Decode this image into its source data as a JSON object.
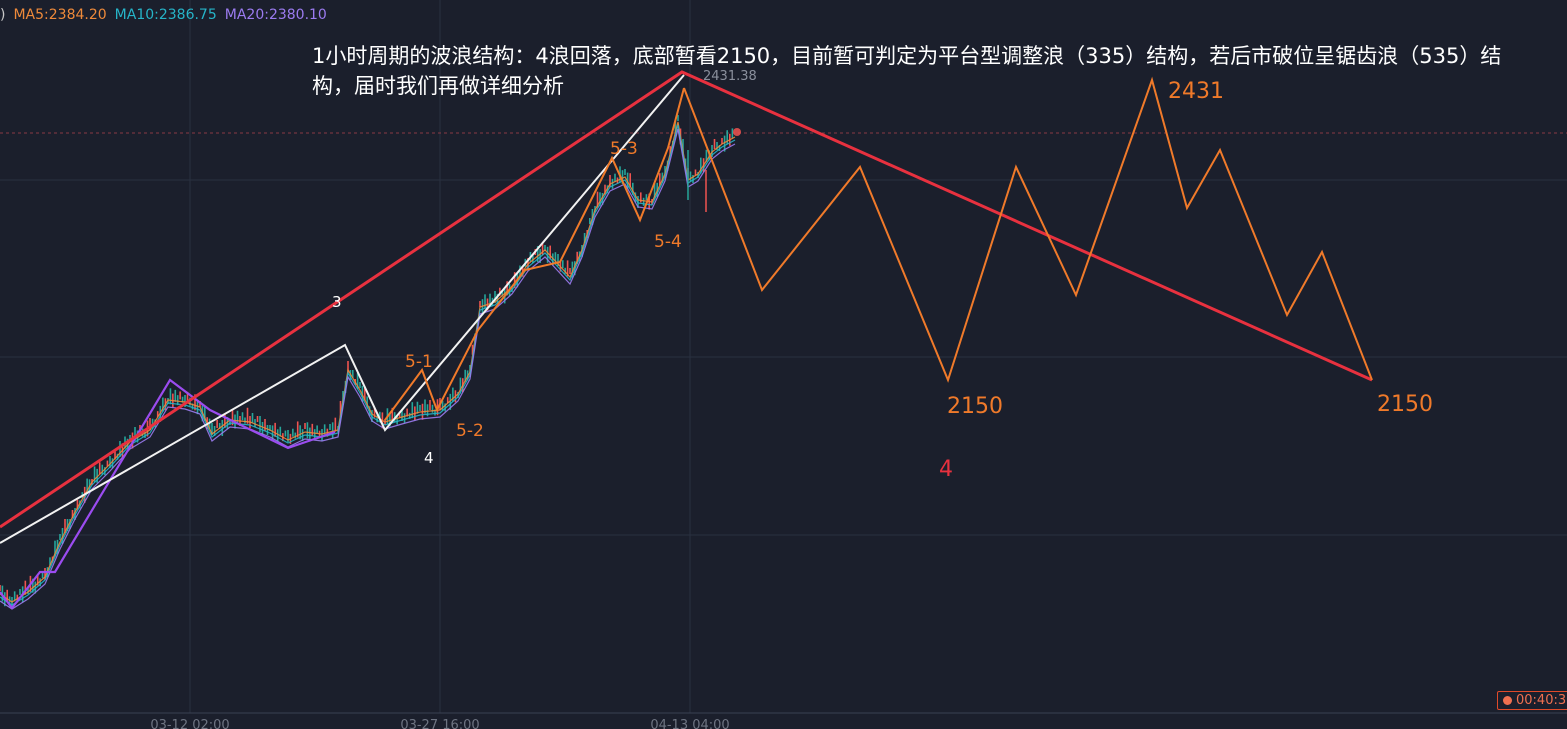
{
  "legend": {
    "prefix": ")",
    "items": [
      {
        "label": "MA5:2384.20",
        "color": "#ef8a3a"
      },
      {
        "label": "MA10:2386.75",
        "color": "#26b4c8"
      },
      {
        "label": "MA20:2380.10",
        "color": "#9b7bf0"
      }
    ]
  },
  "headline": "1小时周期的波浪结构：4浪回落，底部暂看2150，目前暂可判定为平台型调整浪（335）结构，若后市破位呈锯齿浪（535）结构，届时我们再做详细分析",
  "timer": "00:40:31",
  "chart_data": {
    "type": "line",
    "x_ticks": [
      "03-12 02:00",
      "03-27 16:00",
      "04-13 04:00"
    ],
    "high_marker": "2431.38",
    "wave_labels": {
      "white": [
        "3",
        "4"
      ],
      "orange": [
        "5-1",
        "5-2",
        "5-3",
        "5-4"
      ],
      "projection": [
        "2431",
        "2150",
        "2150"
      ],
      "red": [
        "4"
      ]
    },
    "colors": {
      "background": "#1b1f2c",
      "red_channel": "#e8313f",
      "white_wave": "#f2f2f2",
      "orange_wave": "#f07a2a",
      "purple_wave": "#9b4cf0",
      "candle_up": "#26a69a",
      "candle_down": "#ef5350"
    }
  }
}
